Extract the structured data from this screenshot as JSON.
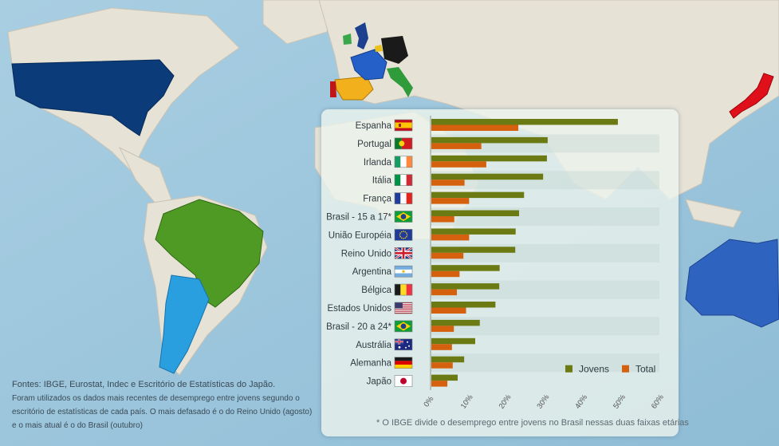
{
  "colors": {
    "jovens": "#6b7a12",
    "total": "#d5600e",
    "panel": "#eef4ee",
    "usa": "#0b3b78",
    "brazil": "#4f9a25",
    "argentina": "#2a9fe0",
    "japan": "#e0101a",
    "australia": "#2f63c0"
  },
  "sources": {
    "main": "Fontes: IBGE, Eurostat, Indec e Escritório de Estatísticas do Japão.",
    "note": "Foram utilizados os dados mais recentes de desemprego entre jovens segundo o escritório de estatísticas de cada país. O mais defasado é o do Reino Unido (agosto) e o mais atual é o do Brasil (outubro)"
  },
  "footnote": "* O IBGE divide o desemprego entre jovens no Brasil nessas duas faixas etárias",
  "chart_data": {
    "type": "bar",
    "orientation": "horizontal",
    "categories": [
      "Espanha",
      "Portugal",
      "Irlanda",
      "Itália",
      "França",
      "Brasil - 15 a 17*",
      "União Européia",
      "Reino Unido",
      "Argentina",
      "Bélgica",
      "Estados Unidos",
      "Brasil - 20 a 24*",
      "Austrália",
      "Alemanha",
      "Japão"
    ],
    "flags": [
      "spain-flag-icon",
      "portugal-flag-icon",
      "ireland-flag-icon",
      "italy-flag-icon",
      "france-flag-icon",
      "brazil-flag-icon",
      "eu-flag-icon",
      "uk-flag-icon",
      "argentina-flag-icon",
      "belgium-flag-icon",
      "usa-flag-icon",
      "brazil-flag-icon",
      "australia-flag-icon",
      "germany-flag-icon",
      "japan-flag-icon"
    ],
    "series": [
      {
        "name": "Jovens",
        "values": [
          48.9,
          30.5,
          30.3,
          29.3,
          24.3,
          23.0,
          22.1,
          22.0,
          17.9,
          17.8,
          16.8,
          12.7,
          11.5,
          8.6,
          6.9
        ]
      },
      {
        "name": "Total",
        "values": [
          22.8,
          13.1,
          14.4,
          8.7,
          9.9,
          6.0,
          9.9,
          8.4,
          7.4,
          6.7,
          9.1,
          5.9,
          5.4,
          5.6,
          4.2
        ]
      }
    ],
    "xlim": [
      0,
      60
    ],
    "ticks": [
      "0%",
      "10%",
      "20%",
      "30%",
      "40%",
      "50%",
      "60%"
    ],
    "grid": false,
    "legend_position": "bottom-right"
  }
}
